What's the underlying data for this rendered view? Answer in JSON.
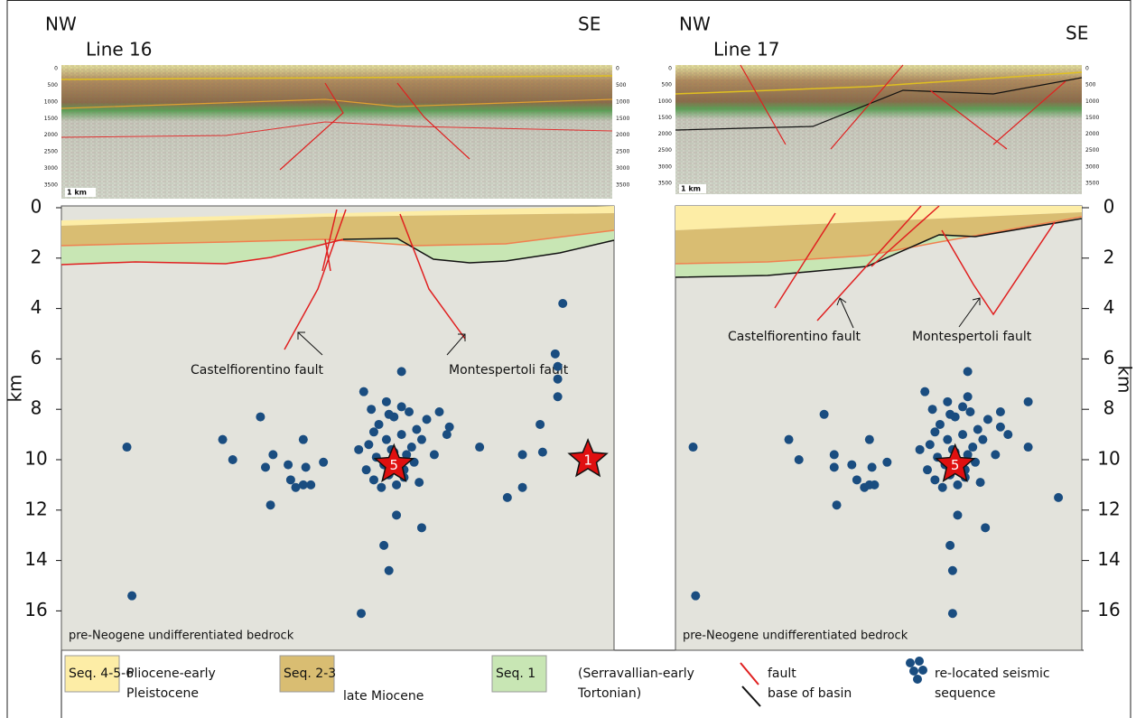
{
  "panels": [
    {
      "direction_left": "NW",
      "line": "Line 16",
      "direction_right": "SE",
      "seismic_ticks": [
        0,
        500,
        1000,
        1500,
        2000,
        2500,
        3000,
        3500
      ],
      "scale_bar": "1 km",
      "depth_axis": {
        "label": "km",
        "ylim": [
          0,
          17.5
        ],
        "yticks": [
          0,
          2,
          4,
          6,
          8,
          10,
          12,
          14,
          16
        ]
      },
      "fault_labels": [
        "Castelfiorentino fault",
        "Montespertoli fault"
      ],
      "bedrock_label": "pre-Neogene undifferentiated bedrock",
      "events": {
        "x": [
          2.6,
          2.8,
          6.4,
          6.8,
          7.9,
          8.1,
          8.4,
          8.3,
          9.0,
          9.1,
          9.3,
          9.6,
          9.7,
          9.6,
          9.9,
          10.4,
          11.9,
          12.8,
          13.0,
          13.3,
          14.3,
          15.4,
          16.6,
          17.7,
          18.3,
          18.3,
          19.0,
          19.1,
          19.6,
          19.7,
          19.7,
          19.7,
          19.9,
          13.5,
          12.0,
          12.3,
          12.6,
          12.9,
          13.2,
          13.5,
          13.8,
          14.1,
          12.2,
          12.5,
          12.8,
          13.1,
          13.4,
          13.7,
          14.0,
          14.3,
          12.4,
          12.7,
          13.0,
          13.3,
          13.6,
          13.9,
          14.5,
          15.0,
          15.3,
          11.8,
          12.1,
          13.5,
          14.8,
          12.9,
          13.2,
          13.6,
          12.4,
          13.0,
          14.2
        ],
        "depth": [
          9.5,
          15.4,
          9.2,
          10.0,
          8.3,
          10.3,
          9.8,
          11.8,
          10.2,
          10.8,
          11.1,
          9.2,
          10.3,
          11.0,
          11.0,
          10.1,
          16.1,
          13.4,
          14.4,
          12.2,
          12.7,
          8.7,
          9.5,
          11.5,
          11.1,
          9.8,
          8.6,
          9.7,
          5.8,
          6.8,
          7.5,
          6.3,
          3.8,
          6.5,
          7.3,
          8.0,
          8.6,
          7.7,
          8.3,
          9.0,
          8.1,
          8.8,
          9.4,
          9.9,
          10.2,
          9.6,
          10.5,
          9.8,
          10.1,
          9.2,
          10.8,
          11.1,
          10.6,
          11.0,
          10.4,
          9.5,
          8.4,
          8.1,
          9.0,
          9.6,
          10.4,
          7.9,
          9.8,
          9.2,
          9.7,
          10.7,
          8.9,
          8.2,
          10.9
        ]
      },
      "mainshocks": [
        {
          "label": "5",
          "x": 13.2,
          "depth": 10.2
        },
        {
          "label": "1",
          "x": 20.9,
          "depth": 10.0
        }
      ]
    },
    {
      "direction_left": "NW",
      "line": "Line 17",
      "direction_right": "SE",
      "seismic_ticks": [
        0,
        500,
        1000,
        1500,
        2000,
        2500,
        3000,
        3500
      ],
      "scale_bar": "1 km",
      "depth_axis": {
        "label": "km",
        "ylim": [
          0,
          17.5
        ],
        "yticks": [
          0,
          2,
          4,
          6,
          8,
          10,
          12,
          14,
          16
        ]
      },
      "fault_labels": [
        "Castelfiorentino fault",
        "Montespertoli fault"
      ],
      "bedrock_label": "pre-Neogene undifferentiated bedrock",
      "events": {
        "x": [
          0.7,
          0.8,
          4.5,
          4.9,
          5.9,
          6.3,
          6.4,
          6.3,
          7.0,
          7.2,
          7.5,
          7.7,
          7.8,
          7.7,
          7.9,
          8.4,
          11.0,
          10.9,
          11.0,
          11.2,
          12.3,
          11.6,
          12.9,
          14.0,
          15.2,
          14.0,
          11.6,
          9.9,
          10.2,
          10.5,
          10.8,
          11.1,
          11.4,
          11.7,
          12.0,
          10.1,
          10.4,
          10.7,
          11.0,
          11.3,
          11.6,
          11.9,
          12.2,
          10.3,
          10.6,
          10.9,
          11.2,
          11.5,
          11.8,
          12.4,
          12.9,
          13.2,
          9.7,
          10.0,
          11.4,
          12.7,
          10.8,
          11.1,
          11.5,
          10.3,
          10.9,
          12.1
        ],
        "depth": [
          9.5,
          15.4,
          9.2,
          10.0,
          8.2,
          9.8,
          11.8,
          10.3,
          10.2,
          10.8,
          11.1,
          9.2,
          10.3,
          11.0,
          11.0,
          10.1,
          16.1,
          13.4,
          14.4,
          12.2,
          12.7,
          7.5,
          8.7,
          9.5,
          11.5,
          7.7,
          6.5,
          7.3,
          8.0,
          8.6,
          7.7,
          8.3,
          9.0,
          8.1,
          8.8,
          9.4,
          9.9,
          10.2,
          9.6,
          10.5,
          9.8,
          10.1,
          9.2,
          10.8,
          11.1,
          10.6,
          11.0,
          10.4,
          9.5,
          8.4,
          8.1,
          9.0,
          9.6,
          10.4,
          7.9,
          9.8,
          9.2,
          9.7,
          10.7,
          8.9,
          8.2,
          10.9
        ]
      },
      "mainshocks": [
        {
          "label": "5",
          "x": 11.1,
          "depth": 10.2
        }
      ]
    }
  ],
  "legend": {
    "sequences": [
      {
        "box": "Seq. 4-5-6",
        "color": "#fdeda6",
        "description": [
          "Pliocene-early",
          "Pleistocene"
        ]
      },
      {
        "box": "Seq. 2-3",
        "color": "#d9bd72",
        "description": [
          "late Miocene"
        ]
      },
      {
        "box": "Seq. 1",
        "color": "#c8e6b4",
        "description": [
          "(Serravallian-early",
          "Tortonian)"
        ]
      }
    ],
    "fault": "fault",
    "base": "base of basin",
    "seismic": [
      "re-located seismic",
      "sequence"
    ]
  }
}
